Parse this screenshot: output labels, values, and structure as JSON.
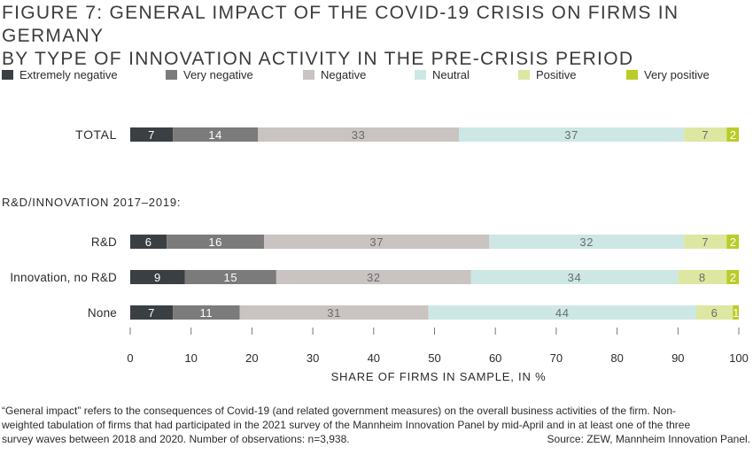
{
  "figure": {
    "title_line1": "FIGURE 7: GENERAL IMPACT OF THE COVID-19 CRISIS ON FIRMS IN GERMANY",
    "title_line2": "BY TYPE OF INNOVATION ACTIVITY IN THE PRE-CRISIS PERIOD"
  },
  "colors": {
    "extremely_negative": "#3a3f43",
    "very_negative": "#7b7b7b",
    "negative": "#c9c3c1",
    "neutral": "#cde7e5",
    "positive": "#dde7a2",
    "very_positive": "#b9cc28",
    "label_dark_bg": "#ffffff",
    "label_light_bg": "#6b6b6b"
  },
  "chart_data": {
    "type": "bar",
    "orientation": "horizontal",
    "stacked": true,
    "categories": [
      "TOTAL",
      "R&D",
      "Innovation, no R&D",
      "None"
    ],
    "group_label": "R&D/INNOVATION 2017–2019:",
    "series": [
      {
        "name": "Extremely negative",
        "values": [
          7,
          6,
          9,
          7
        ]
      },
      {
        "name": "Very negative",
        "values": [
          14,
          16,
          15,
          11
        ]
      },
      {
        "name": "Negative",
        "values": [
          33,
          37,
          32,
          31
        ]
      },
      {
        "name": "Neutral",
        "values": [
          37,
          32,
          34,
          44
        ]
      },
      {
        "name": "Positive",
        "values": [
          7,
          7,
          8,
          6
        ]
      },
      {
        "name": "Very positive",
        "values": [
          2,
          2,
          2,
          1
        ]
      }
    ],
    "xlabel": "SHARE OF FIRMS IN SAMPLE, IN %",
    "xlim": [
      0,
      100
    ],
    "xticks": [
      "0",
      "10",
      "20",
      "30",
      "40",
      "50",
      "60",
      "70",
      "80",
      "90",
      "100"
    ],
    "legend_position": "top",
    "grid": false
  },
  "footnote": {
    "line1": "“General impact” refers to the consequences of Covid-19 (and related government measures) on the overall business activities of the firm. Non-",
    "line2": "weighted tabulation of firms that had participated in the 2021 survey of the Mannheim Innovation Panel by mid-April and in at least one of the three",
    "line3": "survey waves between 2018 and 2020. Number of observations: n=3,938.",
    "source": "Source: ZEW, Mannheim Innovation Panel."
  }
}
